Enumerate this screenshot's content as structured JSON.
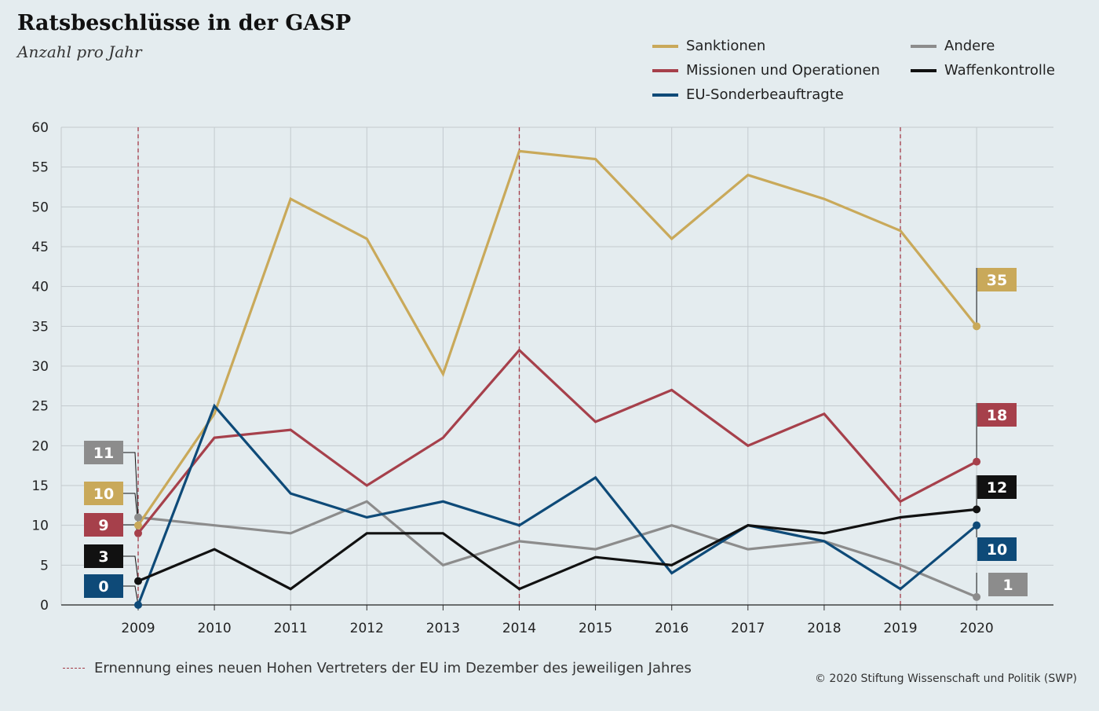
{
  "header": {
    "title": "Ratsbeschlüsse in der GASP",
    "subtitle": "Anzahl pro Jahr"
  },
  "footer": {
    "note": "Ernennung eines neuen Hohen Vertreters der EU im Dezember des jeweiligen Jahres",
    "copyright": "© 2020 Stiftung Wissenschaft und Politik (SWP)"
  },
  "colors": {
    "background": "#e4ecef",
    "grid": "#c3cace",
    "marker_line": "#a33a46"
  },
  "chart_data": {
    "type": "line",
    "x": [
      "2009",
      "2010",
      "2011",
      "2012",
      "2013",
      "2014",
      "2015",
      "2016",
      "2017",
      "2018",
      "2019",
      "2020"
    ],
    "ylim": [
      0,
      60
    ],
    "yticks": [
      0,
      5,
      10,
      15,
      20,
      25,
      30,
      35,
      40,
      45,
      50,
      55,
      60
    ],
    "grid": true,
    "legend_position": "top-right",
    "vertical_markers": [
      "2009",
      "2014",
      "2019"
    ],
    "series": [
      {
        "name": "Sanktionen",
        "color": "#c9a95a",
        "values": [
          10,
          24,
          51,
          46,
          29,
          57,
          56,
          46,
          54,
          51,
          47,
          35
        ]
      },
      {
        "name": "Missionen und Operationen",
        "color": "#a6404b",
        "values": [
          9,
          21,
          22,
          15,
          21,
          32,
          23,
          27,
          20,
          24,
          13,
          18
        ]
      },
      {
        "name": "EU-Sonderbeauftragte",
        "color": "#0e4a78",
        "values": [
          0,
          25,
          14,
          11,
          13,
          10,
          16,
          4,
          10,
          8,
          2,
          10
        ]
      },
      {
        "name": "Andere",
        "color": "#8c8c8c",
        "values": [
          11,
          10,
          9,
          13,
          5,
          8,
          7,
          10,
          7,
          8,
          5,
          1
        ]
      },
      {
        "name": "Waffenkontrolle",
        "color": "#111111",
        "values": [
          3,
          7,
          2,
          9,
          9,
          2,
          6,
          5,
          10,
          9,
          11,
          12
        ]
      }
    ],
    "start_labels": [
      {
        "series": "Andere",
        "text": "11"
      },
      {
        "series": "Sanktionen",
        "text": "10"
      },
      {
        "series": "Missionen und Operationen",
        "text": "9"
      },
      {
        "series": "Waffenkontrolle",
        "text": "3"
      },
      {
        "series": "EU-Sonderbeauftragte",
        "text": "0"
      }
    ],
    "end_labels": [
      {
        "series": "Sanktionen",
        "text": "35"
      },
      {
        "series": "Missionen und Operationen",
        "text": "18"
      },
      {
        "series": "Waffenkontrolle",
        "text": "12"
      },
      {
        "series": "EU-Sonderbeauftragte",
        "text": "10"
      },
      {
        "series": "Andere",
        "text": "1"
      }
    ]
  }
}
